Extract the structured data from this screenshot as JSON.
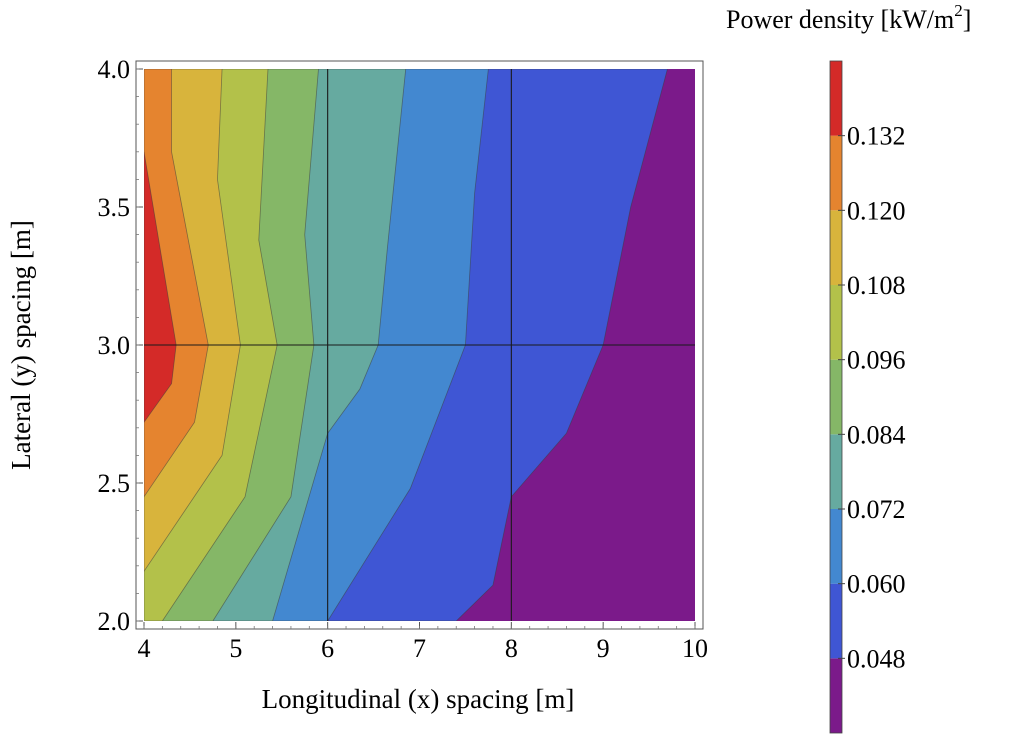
{
  "chart_data": {
    "type": "contour",
    "xlabel": "Longitudinal (x) spacing [m]",
    "ylabel": "Lateral (y) spacing [m]",
    "xlim": [
      4,
      10
    ],
    "ylim": [
      2,
      4
    ],
    "xticks": [
      4,
      5,
      6,
      7,
      8,
      9,
      10
    ],
    "yticks": [
      2.0,
      2.5,
      3.0,
      3.5,
      4.0
    ],
    "xtick_labels": [
      "4",
      "5",
      "6",
      "7",
      "8",
      "9",
      "10"
    ],
    "ytick_labels": [
      "2.0",
      "2.5",
      "3.0",
      "3.5",
      "4.0"
    ],
    "gridlines_x": [
      6,
      8
    ],
    "gridlines_y": [
      3.0
    ],
    "colorbar": {
      "title": "Power density [kW/m",
      "title_sup": "2",
      "title_end": "]",
      "range": [
        0.036,
        0.144
      ],
      "levels": [
        0.048,
        0.06,
        0.072,
        0.084,
        0.096,
        0.108,
        0.12,
        0.132
      ],
      "tick_labels": [
        "0.048",
        "0.060",
        "0.072",
        "0.084",
        "0.096",
        "0.108",
        "0.120",
        "0.132"
      ],
      "colors": [
        "#7b1a8a",
        "#3f56d4",
        "#4388d0",
        "#66aaa0",
        "#85b767",
        "#b3c14a",
        "#d8b43c",
        "#e5842f",
        "#d42a28"
      ]
    },
    "contour_boundaries": [
      {
        "level": 0.132,
        "points": [
          [
            4.0,
            2.72
          ],
          [
            4.3,
            2.86
          ],
          [
            4.35,
            3.0
          ],
          [
            4.0,
            3.7
          ]
        ]
      },
      {
        "level": 0.12,
        "points": [
          [
            4.0,
            2.45
          ],
          [
            4.55,
            2.72
          ],
          [
            4.7,
            3.0
          ],
          [
            4.3,
            3.7
          ],
          [
            4.3,
            4.0
          ]
        ]
      },
      {
        "level": 0.108,
        "points": [
          [
            4.0,
            2.18
          ],
          [
            4.85,
            2.6
          ],
          [
            5.05,
            3.0
          ],
          [
            4.8,
            3.6
          ],
          [
            4.85,
            4.0
          ]
        ]
      },
      {
        "level": 0.096,
        "points": [
          [
            4.2,
            2.0
          ],
          [
            5.1,
            2.45
          ],
          [
            5.45,
            3.0
          ],
          [
            5.25,
            3.38
          ],
          [
            5.35,
            4.0
          ]
        ]
      },
      {
        "level": 0.084,
        "points": [
          [
            4.75,
            2.0
          ],
          [
            5.6,
            2.45
          ],
          [
            5.85,
            3.0
          ],
          [
            5.75,
            3.4
          ],
          [
            5.9,
            4.0
          ]
        ]
      },
      {
        "level": 0.072,
        "points": [
          [
            5.4,
            2.0
          ],
          [
            6.0,
            2.68
          ],
          [
            6.35,
            2.84
          ],
          [
            6.55,
            3.0
          ],
          [
            6.65,
            3.35
          ],
          [
            6.85,
            4.0
          ]
        ]
      },
      {
        "level": 0.06,
        "points": [
          [
            6.0,
            2.0
          ],
          [
            6.9,
            2.48
          ],
          [
            7.5,
            3.0
          ],
          [
            7.6,
            3.55
          ],
          [
            7.75,
            4.0
          ]
        ]
      },
      {
        "level": 0.048,
        "points": [
          [
            7.4,
            2.0
          ],
          [
            7.8,
            2.13
          ],
          [
            8.0,
            2.45
          ],
          [
            8.6,
            2.68
          ],
          [
            9.0,
            3.0
          ],
          [
            9.3,
            3.5
          ],
          [
            9.7,
            4.0
          ]
        ]
      }
    ]
  }
}
